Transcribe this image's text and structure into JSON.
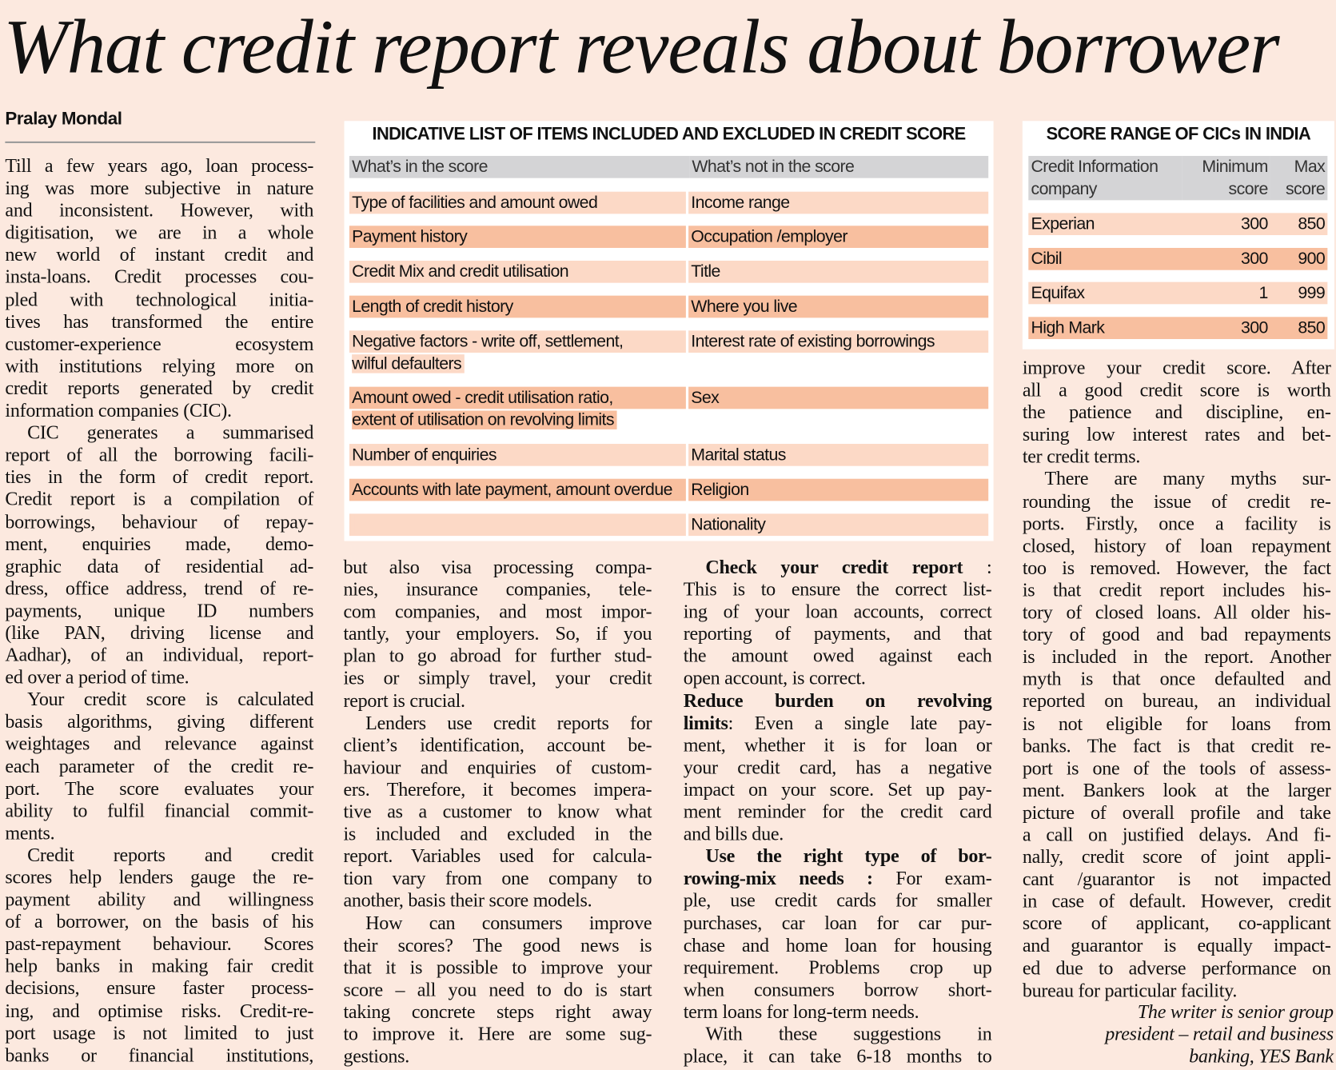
{
  "headline": "What credit report reveals about borrower",
  "byline": "Pralay Mondal",
  "colors": {
    "background": "#fce9df",
    "row_light": "#fcd9c6",
    "row_dark": "#f8bf9f",
    "header_gray": "#d4d4d6"
  },
  "included_excluded_table": {
    "title": "INDICATIVE LIST OF ITEMS INCLUDED AND EXCLUDED IN CREDIT SCORE",
    "headers": [
      "What’s in the score",
      "What’s not in the score"
    ],
    "rows": [
      {
        "in": [
          "Type of facilities and amount owed"
        ],
        "out": "Income range"
      },
      {
        "in": [
          "Payment history"
        ],
        "out": "Occupation /employer"
      },
      {
        "in": [
          "Credit Mix and credit utilisation"
        ],
        "out": "Title"
      },
      {
        "in": [
          "Length of credit history"
        ],
        "out": "Where you live"
      },
      {
        "in": [
          "Negative factors - write off, settlement,",
          "wilful defaulters"
        ],
        "out": "Interest rate of existing borrowings"
      },
      {
        "in": [
          "Amount owed - credit utilisation ratio,",
          "extent of utilisation on revolving limits"
        ],
        "out": "Sex"
      },
      {
        "in": [
          "Number of enquiries"
        ],
        "out": "Marital status"
      },
      {
        "in": [
          "Accounts with late payment, amount overdue"
        ],
        "out": "Religion"
      },
      {
        "in": [
          ""
        ],
        "out": "Nationality"
      }
    ]
  },
  "score_range_table": {
    "title": "SCORE RANGE OF CICs IN INDIA",
    "headers": [
      [
        "Credit Information",
        "company"
      ],
      [
        "Minimum",
        "score"
      ],
      [
        "Max",
        "score"
      ]
    ],
    "rows": [
      {
        "company": "Experian",
        "min": "300",
        "max": "850"
      },
      {
        "company": "Cibil",
        "min": "300",
        "max": "900"
      },
      {
        "company": "Equifax",
        "min": "1",
        "max": "999"
      },
      {
        "company": "High Mark",
        "min": "300",
        "max": "850"
      }
    ]
  },
  "columns": [
    {
      "paragraphs": [
        {
          "indent": false,
          "lines": [
            "Till a few years ago, loan process-",
            "ing was more subjective in nature",
            "and inconsistent. However, with",
            "digitisation, we are in a whole",
            "new world of  instant credit and",
            "insta-loans. Credit processes cou-",
            "pled with technological initia-",
            "tives has transformed the entire",
            "customer-experience ecosystem",
            "with institutions relying more on",
            "credit reports generated by credit",
            "information companies (CIC)."
          ]
        },
        {
          "indent": true,
          "lines": [
            "CIC generates a summarised",
            "report of  all the borrowing facili-",
            "ties in the form of  credit report.",
            "Credit report is a compilation of",
            "borrowings, behaviour of  repay-",
            "ment, enquiries made, demo-",
            "graphic data of  residential ad-",
            "dress, office address, trend of  re-",
            "payments, unique ID numbers",
            "(like PAN, driving license and",
            "Aadhar), of  an individual, report-",
            "ed over a period of  time."
          ]
        },
        {
          "indent": true,
          "lines": [
            "Your credit score is calculated",
            "basis algorithms, giving different",
            "weightages and relevance against",
            "each parameter of  the credit re-",
            "port. The score evaluates your",
            "ability to fulfil financial commit-",
            "ments."
          ]
        },
        {
          "indent": true,
          "open": true,
          "lines": [
            "Credit reports and credit",
            "scores help lenders gauge the re-",
            "payment ability and willingness",
            "of  a borrower, on the basis of  his",
            "past-repayment behaviour. Scores",
            "help banks in making fair credit",
            "decisions, ensure faster process-",
            "ing, and optimise risks. Credit-re-",
            "port usage is not limited to just",
            "banks or financial institutions,"
          ]
        }
      ]
    },
    {
      "paragraphs": [
        {
          "indent": false,
          "lines": [
            "but also visa processing compa-",
            "nies, insurance companies, tele-",
            "com companies, and most impor-",
            "tantly, your employers. So, if  you",
            "plan to go abroad for further stud-",
            "ies or simply travel, your credit",
            "report is crucial."
          ]
        },
        {
          "indent": true,
          "lines": [
            "Lenders use credit reports for",
            "client’s identification, account be-",
            "haviour and enquiries of  custom-",
            "ers. Therefore, it becomes impera-",
            "tive as a customer to know what",
            "is included  and excluded in the",
            "report. Variables used for calcula-",
            "tion vary from one company to",
            "another, basis their score models."
          ]
        },
        {
          "indent": true,
          "lines": [
            "How can consumers improve",
            "their scores? The good news is",
            "that it is possible to improve your",
            "score – all you need to do is start",
            "taking concrete steps right away",
            "to improve it.  Here are some sug-",
            "gestions."
          ]
        }
      ]
    },
    {
      "paragraphs": [
        {
          "indent": true,
          "lines": [
            [
              {
                "b": "Check your credit report"
              },
              {
                "t": " :"
              }
            ],
            "This is to ensure the correct list-",
            "ing of  your loan accounts, correct",
            "reporting of  payments, and that",
            "the amount owed against each",
            "open account, is correct."
          ]
        },
        {
          "indent": false,
          "lines": [
            [
              {
                "b": "Reduce burden on revolving"
              }
            ],
            [
              {
                "b": "limits"
              },
              {
                "t": ": Even a single late pay-"
              }
            ],
            "ment, whether it is for loan or",
            "your credit card, has a negative",
            "impact on your score. Set up pay-",
            "ment reminder for the credit card",
            "and bills due."
          ]
        },
        {
          "indent": true,
          "lines": [
            [
              {
                "b": "Use the right type of  bor-"
              }
            ],
            [
              {
                "b": "rowing-mix needs :"
              },
              {
                "t": " For exam-"
              }
            ],
            "ple, use credit cards for smaller",
            "purchases, car loan for car pur-",
            "chase and home loan for housing",
            "requirement. Problems crop up",
            "when consumers borrow short-",
            "term loans for long-term needs."
          ]
        },
        {
          "indent": true,
          "open": true,
          "lines": [
            "With these suggestions in",
            "place, it can take 6-18 months to"
          ]
        }
      ]
    },
    {
      "paragraphs": [
        {
          "indent": false,
          "lines": [
            "improve your credit score. After",
            "all a good credit score is worth",
            "the patience and discipline, en-",
            "suring low interest rates and bet-",
            "ter credit terms."
          ]
        },
        {
          "indent": true,
          "lines": [
            "There are many myths sur-",
            "rounding the issue of  credit re-",
            "ports. Firstly, once a facility is",
            "closed, history of  loan repayment",
            "too is removed. However, the fact",
            "is that credit report includes his-",
            "tory of  closed loans. All older his-",
            "tory of  good and bad repayments",
            "is included in the report. Another",
            "myth is that once defaulted and",
            "reported on bureau, an individual",
            "is not eligible for loans from",
            "banks. The fact is that credit re-",
            "port is one of the tools of  assess-",
            "ment. Bankers look at the larger",
            "picture of  overall profile and take",
            "a call on justified delays. And fi-",
            "nally, credit score of  joint appli-",
            "cant /guarantor is not impacted",
            "in case of  default. However, credit",
            "score of  applicant, co-applicant",
            "and guarantor is equally impact-",
            "ed due to adverse performance on",
            "bureau for particular facility."
          ]
        }
      ]
    }
  ],
  "author_note": [
    "The writer is senior group",
    "president – retail and business",
    "banking, YES Bank"
  ]
}
